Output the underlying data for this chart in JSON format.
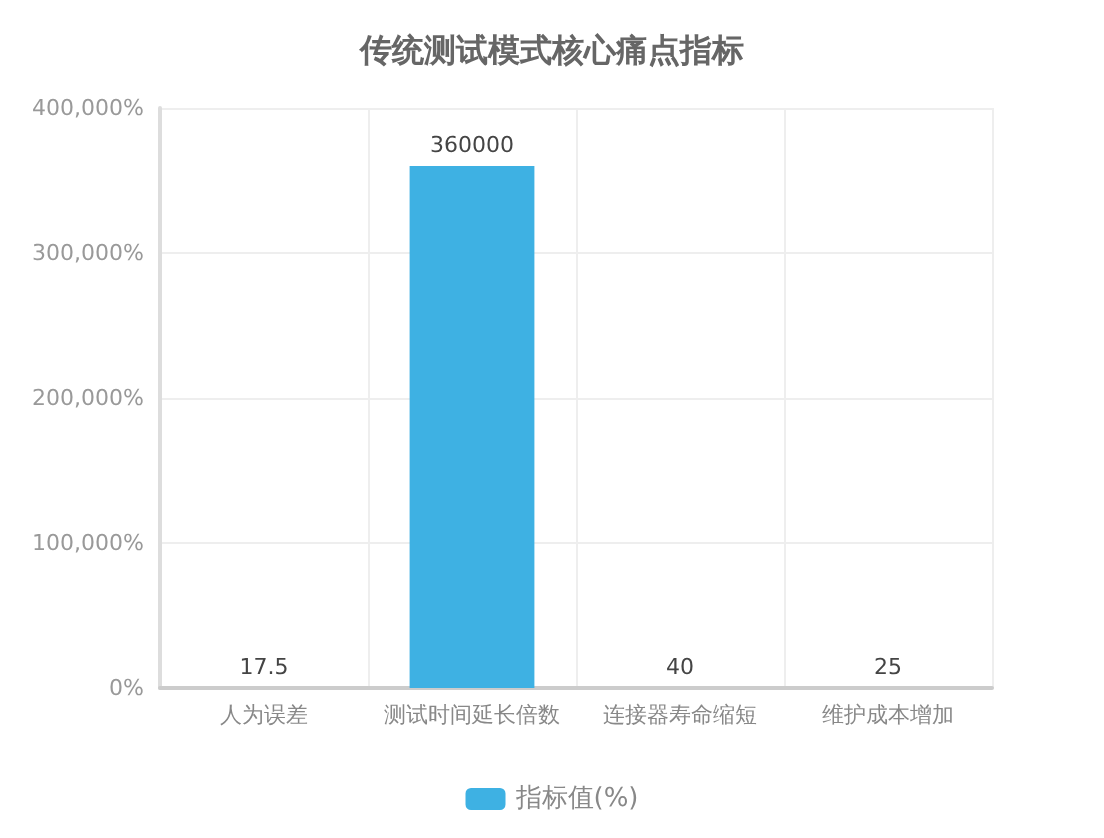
{
  "chart_data": {
    "type": "bar",
    "title": "传统测试模式核心痛点指标",
    "categories": [
      "人为误差",
      "测试时间延长倍数",
      "连接器寿命缩短",
      "维护成本增加"
    ],
    "series": [
      {
        "name": "指标值(%)",
        "color": "#3eb1e3",
        "values": [
          17.5,
          360000,
          40,
          25
        ]
      }
    ],
    "ylim": [
      0,
      400000
    ],
    "yticks": [
      {
        "value": 0,
        "label": "0%"
      },
      {
        "value": 100000,
        "label": "100,000%"
      },
      {
        "value": 200000,
        "label": "200,000%"
      },
      {
        "value": 300000,
        "label": "300,000%"
      },
      {
        "value": 400000,
        "label": "400,000%"
      }
    ],
    "data_labels": true,
    "grid": true,
    "legend": "bottom"
  }
}
